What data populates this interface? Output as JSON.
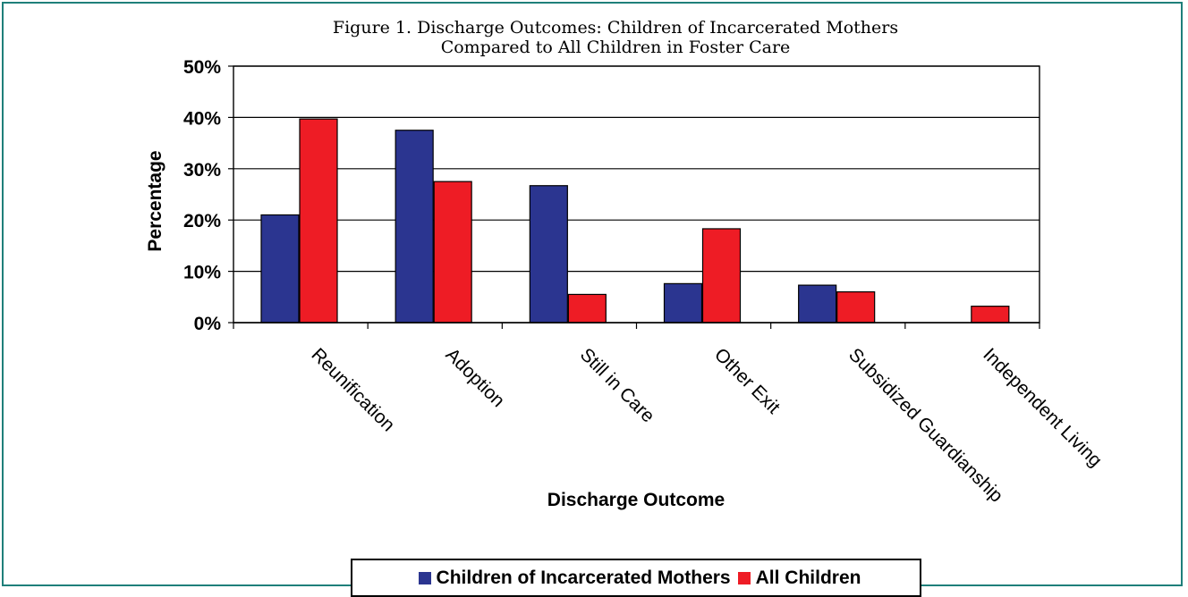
{
  "chart_data": {
    "type": "bar",
    "title_line1": "Figure 1. Discharge Outcomes: Children of Incarcerated Mothers",
    "title_line2": "Compared to All Children in Foster Care",
    "xlabel": "Discharge Outcome",
    "ylabel": "Percentage",
    "ylim": [
      0,
      50
    ],
    "yticks": [
      "0%",
      "10%",
      "20%",
      "30%",
      "40%",
      "50%"
    ],
    "categories": [
      "Reunification",
      "Adoption",
      "Still in Care",
      "Other Exit",
      "Subsidized Guardianship",
      "Independent Living"
    ],
    "series": [
      {
        "name": "Children of Incarcerated Mothers",
        "color": "#2b3590",
        "values": [
          21,
          37.5,
          26.7,
          7.6,
          7.3,
          0
        ]
      },
      {
        "name": "All Children",
        "color": "#ee1c25",
        "values": [
          39.7,
          27.5,
          5.5,
          18.3,
          6,
          3.2
        ]
      }
    ],
    "grid": true,
    "legend_position": "bottom"
  }
}
